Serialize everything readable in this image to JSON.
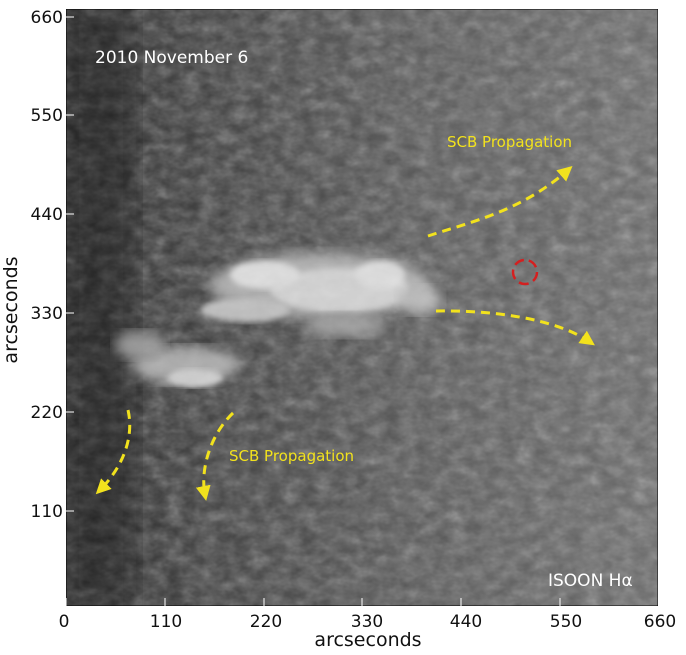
{
  "figure": {
    "date_label": "2010 November 6",
    "instrument_label": "ISOON Hα",
    "annotation_top": "SCB Propagation",
    "annotation_bottom": "SCB Propagation",
    "xlabel": "arcseconds",
    "ylabel": "arcseconds",
    "x_ticks": [
      "0",
      "110",
      "220",
      "330",
      "440",
      "550",
      "660"
    ],
    "y_ticks": [
      "660",
      "550",
      "440",
      "330",
      "220",
      "110"
    ],
    "annotation_color": "#f2e21d",
    "marker_color": "#d42020"
  }
}
